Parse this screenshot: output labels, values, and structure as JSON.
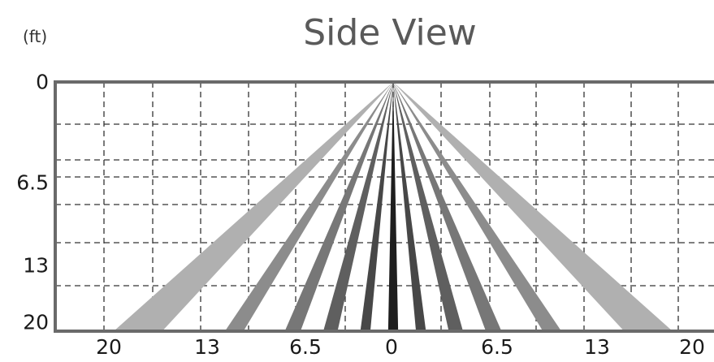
{
  "title": "Side View",
  "unit": "(ft)",
  "colors": {
    "axis": "#6a6a6a",
    "grid": "#333333",
    "beam_outer": "#b0b0b0",
    "beam_dark": "#1e1e1e"
  },
  "y_ticks": [
    {
      "label": "0",
      "value": 0
    },
    {
      "label": "6.5",
      "value": 6.5
    },
    {
      "label": "13",
      "value": 13
    },
    {
      "label": "20",
      "value": 20
    }
  ],
  "x_ticks": [
    {
      "label": "20",
      "value": -20
    },
    {
      "label": "13",
      "value": -13
    },
    {
      "label": "6.5",
      "value": -6.5
    },
    {
      "label": "0",
      "value": 0
    },
    {
      "label": "6.5",
      "value": 6.5
    },
    {
      "label": "13",
      "value": 13
    },
    {
      "label": "20",
      "value": 20
    }
  ],
  "beams": [
    {
      "side": "left",
      "inner": -16.2,
      "outer": -19.6,
      "color": "#b0b0b0"
    },
    {
      "side": "left",
      "inner": -10.5,
      "outer": -11.8,
      "color": "#8c8c8c"
    },
    {
      "side": "left",
      "inner": -6.5,
      "outer": -7.6,
      "color": "#777777"
    },
    {
      "side": "left",
      "inner": -3.9,
      "outer": -4.9,
      "color": "#5f5f5f"
    },
    {
      "side": "left",
      "inner": -1.6,
      "outer": -2.3,
      "color": "#474747"
    },
    {
      "side": "center",
      "inner": -0.35,
      "outer": 0.35,
      "color": "#1e1e1e"
    },
    {
      "side": "right",
      "inner": 1.6,
      "outer": 2.3,
      "color": "#474747"
    },
    {
      "side": "right",
      "inner": 3.9,
      "outer": 4.9,
      "color": "#5f5f5f"
    },
    {
      "side": "right",
      "inner": 6.5,
      "outer": 7.6,
      "color": "#777777"
    },
    {
      "side": "right",
      "inner": 10.5,
      "outer": 11.8,
      "color": "#8c8c8c"
    },
    {
      "side": "right",
      "inner": 16.2,
      "outer": 19.6,
      "color": "#b0b0b0"
    }
  ]
}
